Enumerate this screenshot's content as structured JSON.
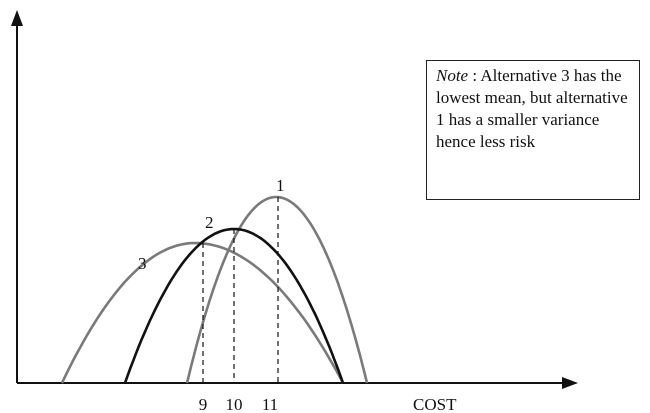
{
  "chart_data": {
    "type": "line",
    "xlabel": "COST",
    "ylabel": "",
    "x_ticks": [
      "9",
      "10",
      "11"
    ],
    "grid": false,
    "curves": [
      {
        "label": "1",
        "peak_at_cost": 11,
        "color": "#7a7a7a",
        "spread": "narrow"
      },
      {
        "label": "2",
        "peak_at_cost": 10,
        "color": "#111111",
        "spread": "medium"
      },
      {
        "label": "3",
        "peak_at_cost": 9,
        "color": "#7a7a7a",
        "spread": "wide"
      }
    ]
  },
  "note": {
    "heading": "Note",
    "text": " : Alternative 3 has the lowest mean, but alternative 1 has a smaller variance hence less risk"
  },
  "colors": {
    "axis": "#111111",
    "curve_gray": "#7a7a7a",
    "curve_dark": "#111111"
  }
}
